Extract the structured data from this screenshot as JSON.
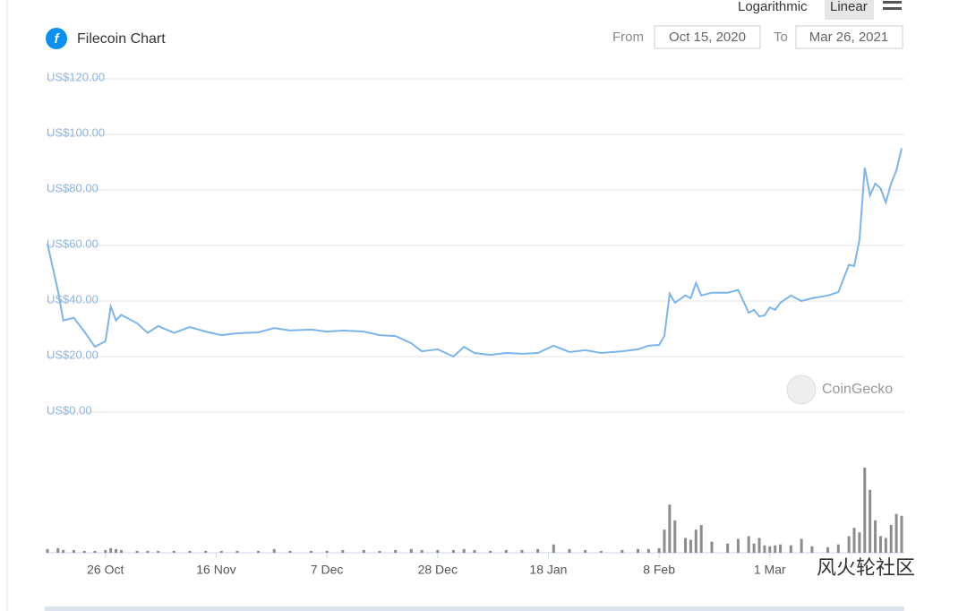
{
  "controls": {
    "log_button": "Logarithmic",
    "linear_button": "Linear",
    "from_label": "From",
    "from_date": "Oct 15, 2020",
    "to_label": "To",
    "to_date": "Mar 26, 2021",
    "watermark": "CoinGecko",
    "community": "风火轮社区"
  },
  "chart_data": {
    "type": "line",
    "title": "Filecoin Chart",
    "x": [
      "15 Oct",
      "17 Oct",
      "18 Oct",
      "20 Oct",
      "22 Oct",
      "24 Oct",
      "26 Oct",
      "27 Oct",
      "28 Oct",
      "29 Oct",
      "1 Nov",
      "3 Nov",
      "5 Nov",
      "8 Nov",
      "11 Nov",
      "14 Nov",
      "17 Nov",
      "20 Nov",
      "24 Nov",
      "27 Nov",
      "30 Nov",
      "4 Dec",
      "7 Dec",
      "10 Dec",
      "14 Dec",
      "17 Dec",
      "20 Dec",
      "23 Dec",
      "25 Dec",
      "28 Dec",
      "31 Dec",
      "2 Jan",
      "4 Jan",
      "7 Jan",
      "10 Jan",
      "13 Jan",
      "16 Jan",
      "19 Jan",
      "22 Jan",
      "25 Jan",
      "28 Jan",
      "1 Feb",
      "4 Feb",
      "6 Feb",
      "8 Feb",
      "9 Feb",
      "10 Feb",
      "11 Feb",
      "13 Feb",
      "14 Feb",
      "15 Feb",
      "16 Feb",
      "18 Feb",
      "21 Feb",
      "23 Feb",
      "25 Feb",
      "26 Feb",
      "27 Feb",
      "28 Feb",
      "1 Mar",
      "2 Mar",
      "3 Mar",
      "5 Mar",
      "7 Mar",
      "9 Mar",
      "12 Mar",
      "14 Mar",
      "16 Mar",
      "17 Mar",
      "18 Mar",
      "19 Mar",
      "20 Mar",
      "21 Mar",
      "22 Mar",
      "23 Mar",
      "24 Mar",
      "25 Mar",
      "26 Mar"
    ],
    "series": [
      {
        "color": "#7cb5ec",
        "values": [
          60.6,
          43.5,
          33,
          34,
          29,
          23.5,
          25.5,
          38,
          33,
          35,
          32,
          28.5,
          31,
          28.5,
          30.6,
          29,
          27.7,
          28.4,
          28.7,
          30.3,
          29.4,
          29.7,
          29,
          29.4,
          29,
          27.7,
          27.4,
          24.8,
          21.9,
          22.6,
          20,
          23.5,
          21.3,
          20.6,
          21.3,
          21,
          21.3,
          23.9,
          21.6,
          22.3,
          21.3,
          21.9,
          22.6,
          23.9,
          24.2,
          27.4,
          42.6,
          39.4,
          42,
          41,
          46.5,
          42,
          43,
          43,
          44,
          35.8,
          36.8,
          34.5,
          34.8,
          37.7,
          36.8,
          39.4,
          42,
          40,
          41,
          42,
          43.2,
          53,
          52.6,
          62,
          88,
          78,
          82.3,
          80.6,
          75.5,
          82.3,
          87,
          95
        ]
      }
    ],
    "volume": {
      "color": "#8c8c8c",
      "values": [
        4,
        5,
        3,
        3,
        2,
        2,
        3,
        5,
        4,
        3,
        2,
        2,
        2,
        2,
        2,
        2,
        2,
        2,
        2,
        4,
        2,
        2,
        2,
        3,
        3,
        2,
        3,
        4,
        3,
        3,
        3,
        4,
        3,
        2,
        3,
        3,
        4,
        9,
        4,
        3,
        2,
        3,
        4,
        4,
        5,
        25,
        52,
        35,
        16,
        14,
        25,
        30,
        12,
        10,
        15,
        18,
        10,
        16,
        8,
        7,
        8,
        9,
        8,
        15,
        7,
        6,
        9,
        18,
        27,
        22,
        92,
        68,
        35,
        18,
        16,
        30,
        42,
        40
      ]
    },
    "ylim": [
      0,
      120
    ],
    "yticks": [
      {
        "value": 0,
        "label": "US$0.00"
      },
      {
        "value": 20,
        "label": "US$20.00"
      },
      {
        "value": 40,
        "label": "US$40.00"
      },
      {
        "value": 60,
        "label": "US$60.00"
      },
      {
        "value": 80,
        "label": "US$80.00"
      },
      {
        "value": 100,
        "label": "US$100.00"
      },
      {
        "value": 120,
        "label": "US$120.00"
      }
    ],
    "xticks": [
      "26 Oct",
      "16 Nov",
      "7 Dec",
      "28 Dec",
      "18 Jan",
      "8 Feb",
      "1 Mar"
    ],
    "grid": true
  }
}
